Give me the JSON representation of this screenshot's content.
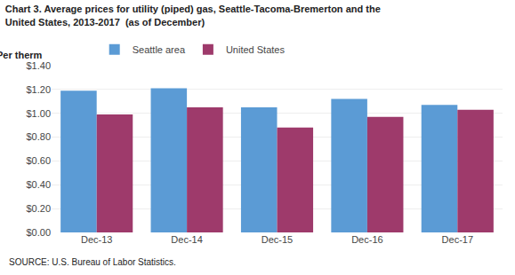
{
  "chart_data": {
    "type": "bar",
    "title": "Chart 3. Average prices for utility (piped) gas, Seattle-Tacoma-Bremerton and the\nUnited States, 2013-2017  (as of December)",
    "ylabel": "Per therm",
    "annotations": [
      "SOURCE: U.S. Bureau of Labor Statistics."
    ],
    "categories": [
      "Dec-13",
      "Dec-14",
      "Dec-15",
      "Dec-16",
      "Dec-17"
    ],
    "series": [
      {
        "name": "Seattle area",
        "color": "#5B9BD5",
        "values": [
          1.19,
          1.21,
          1.05,
          1.12,
          1.07
        ]
      },
      {
        "name": "United States",
        "color": "#9E3A6B",
        "values": [
          0.99,
          1.05,
          0.88,
          0.97,
          1.03
        ]
      }
    ],
    "ylim": [
      0,
      1.4
    ],
    "yticks": [
      {
        "value": 0.0,
        "label": "$0.00"
      },
      {
        "value": 0.2,
        "label": "$0.20"
      },
      {
        "value": 0.4,
        "label": "$0.40"
      },
      {
        "value": 0.6,
        "label": "$0.60"
      },
      {
        "value": 0.8,
        "label": "$0.80"
      },
      {
        "value": 1.0,
        "label": "$1.00"
      },
      {
        "value": 1.2,
        "label": "$1.20"
      },
      {
        "value": 1.4,
        "label": "$1.40"
      }
    ],
    "grid": true,
    "legend": "upper left"
  }
}
